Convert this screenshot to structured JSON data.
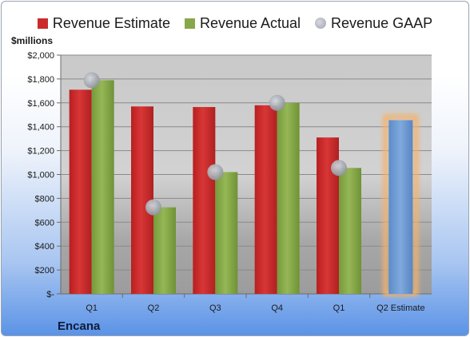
{
  "chart_data": {
    "type": "bar",
    "title": "",
    "ylabel": "$millions",
    "categories": [
      "Q1",
      "Q2",
      "Q3",
      "Q4",
      "Q1",
      "Q2 Estimate"
    ],
    "yticks": [
      "$-",
      "$200",
      "$400",
      "$600",
      "$800",
      "$1,000",
      "$1,200",
      "$1,400",
      "$1,600",
      "$1,800",
      "$2,000"
    ],
    "ylim": [
      0,
      2000
    ],
    "grid": true,
    "legend_position": "top",
    "series": [
      {
        "name": "Revenue Estimate",
        "color": "#cc2a2a",
        "values": [
          1710,
          1570,
          1565,
          1580,
          1310,
          null
        ]
      },
      {
        "name": "Revenue Actual",
        "color": "#86a84a",
        "values": [
          1790,
          725,
          1020,
          1600,
          1055,
          null
        ]
      },
      {
        "name": "Revenue GAAP",
        "color": "#b4b8c2",
        "values": [
          1790,
          725,
          1020,
          1600,
          1055,
          null
        ]
      }
    ],
    "estimate_bar": {
      "category": "Q2 Estimate",
      "value": 1455,
      "color": "#6f9fd8",
      "glow": "#f5b26b"
    }
  },
  "legend": {
    "estimate_label": "Revenue Estimate",
    "actual_label": "Revenue Actual",
    "gaap_label": "Revenue GAAP"
  },
  "unit_label": "$millions",
  "company": "Encana"
}
